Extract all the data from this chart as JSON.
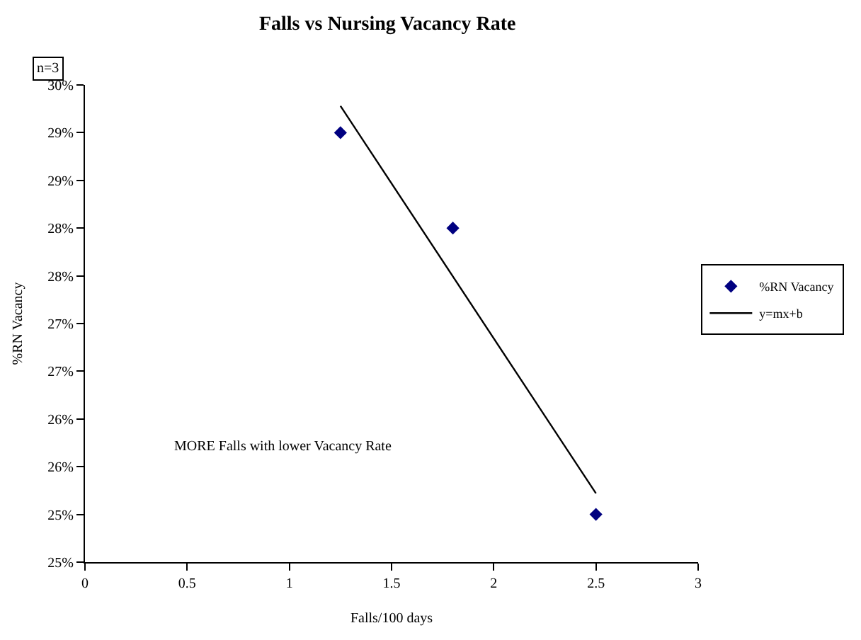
{
  "chart_data": {
    "type": "scatter",
    "title": "Falls vs Nursing Vacancy Rate",
    "xlabel": "Falls/100 days",
    "ylabel": "%RN Vacancy",
    "x": [
      1.25,
      1.8,
      2.5
    ],
    "series": [
      {
        "name": "%RN Vacancy",
        "color": "#000080",
        "marker": "diamond",
        "values": [
          29.5,
          28.5,
          25.5
        ]
      },
      {
        "name": "y=mx+b",
        "type": "line",
        "color": "#000000",
        "marker": "none",
        "line_style": "solid",
        "x": [
          1.25,
          2.5
        ],
        "values": [
          29.78,
          25.72
        ]
      }
    ],
    "xlim": [
      0,
      3
    ],
    "xticks": [
      0,
      0.5,
      1,
      1.5,
      2,
      2.5,
      3
    ],
    "ylim": [
      25,
      30
    ],
    "yticks": [
      {
        "value": 25,
        "label": "25%"
      },
      {
        "value": 25.5,
        "label": "25%"
      },
      {
        "value": 26,
        "label": "26%"
      },
      {
        "value": 26.5,
        "label": "26%"
      },
      {
        "value": 27,
        "label": "27%"
      },
      {
        "value": 27.5,
        "label": "27%"
      },
      {
        "value": 28,
        "label": "28%"
      },
      {
        "value": 28.5,
        "label": "28%"
      },
      {
        "value": 29,
        "label": "29%"
      },
      {
        "value": 29.5,
        "label": "29%"
      },
      {
        "value": 30,
        "label": "30%"
      }
    ],
    "annotations": [
      "n=3",
      "MORE Falls with lower Vacancy Rate"
    ],
    "legend": "right"
  }
}
